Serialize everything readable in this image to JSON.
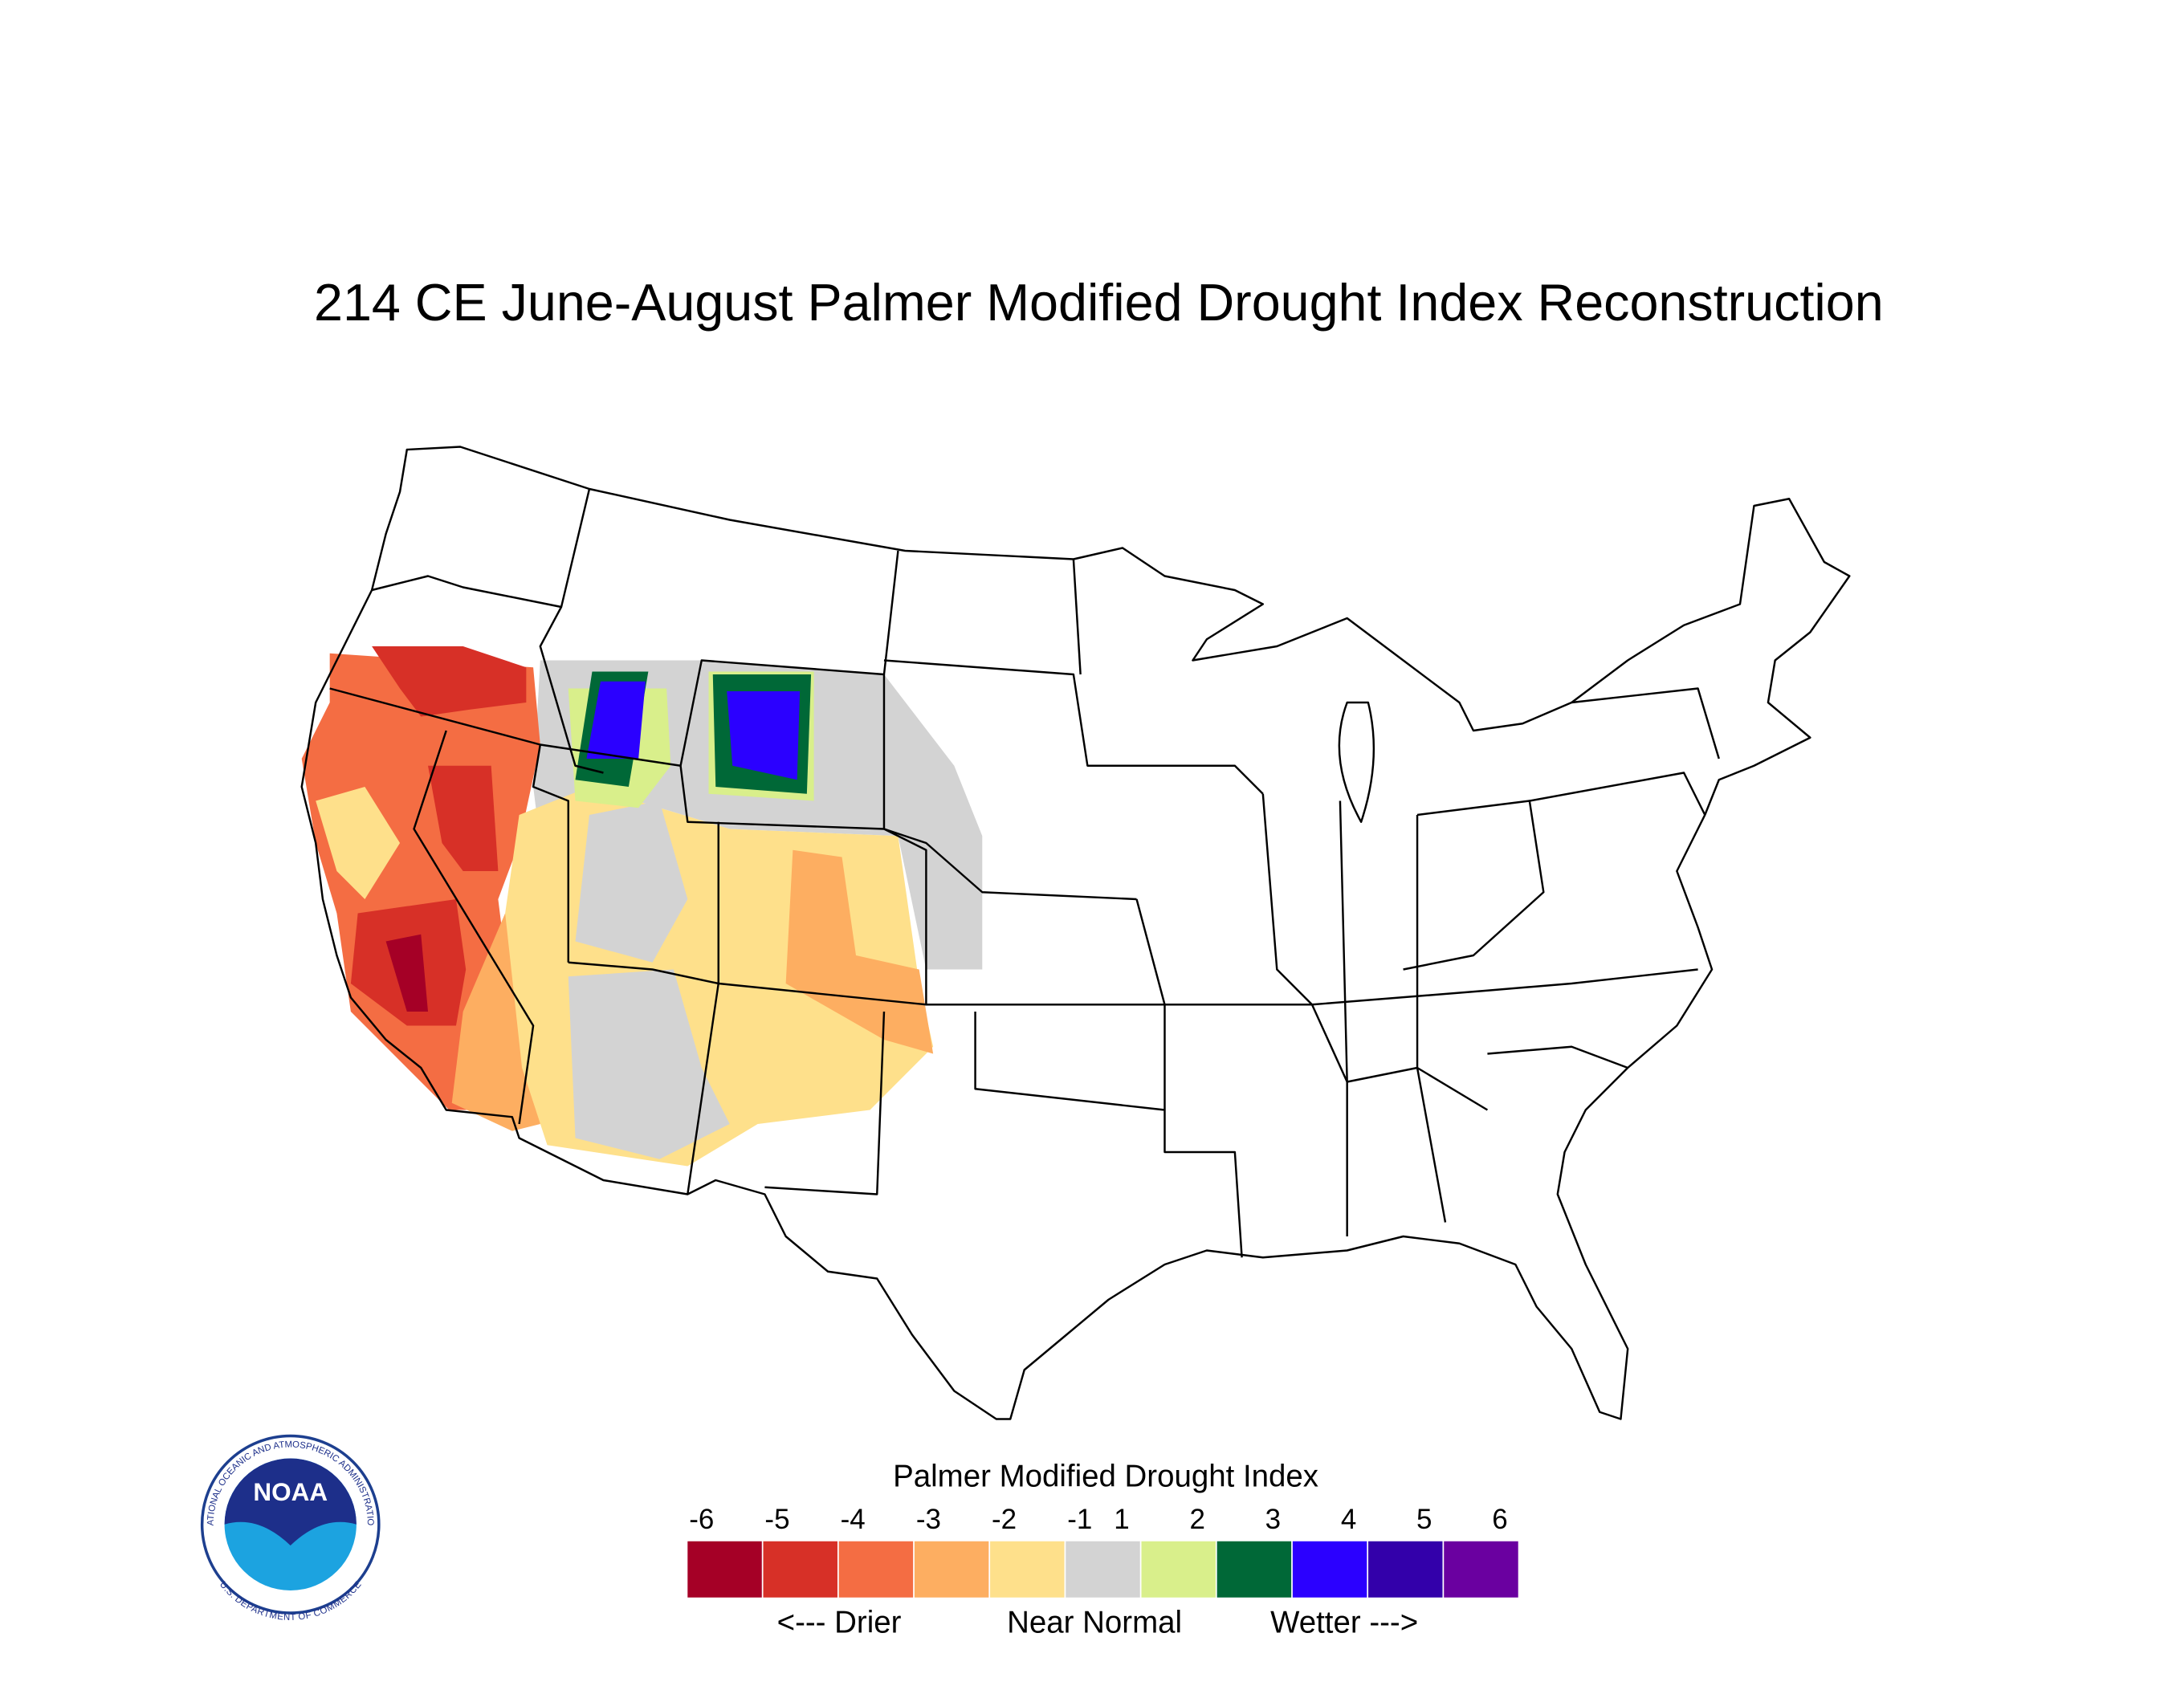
{
  "title": "214 CE  June-August  Palmer Modified Drought Index Reconstruction",
  "legend": {
    "title": "Palmer Modified Drought Index",
    "labels": [
      -6,
      -5,
      -4,
      -3,
      -2,
      -1,
      1,
      2,
      3,
      4,
      5,
      6
    ],
    "colors": [
      "#a50026",
      "#d73027",
      "#f46d43",
      "#fdae61",
      "#fee08b",
      "#d3d3d3",
      "#d9ef8b",
      "#006837",
      "#2b00ff",
      "#3300aa",
      "#6a00a0"
    ],
    "captions": [
      "<--- Drier",
      "Near Normal",
      "Wetter --->"
    ]
  },
  "logo": {
    "name": "NOAA",
    "ring_top": "NATIONAL OCEANIC AND ATMOSPHERIC ADMINISTRATION",
    "ring_bottom": "U.S. DEPARTMENT OF COMMERCE"
  }
}
